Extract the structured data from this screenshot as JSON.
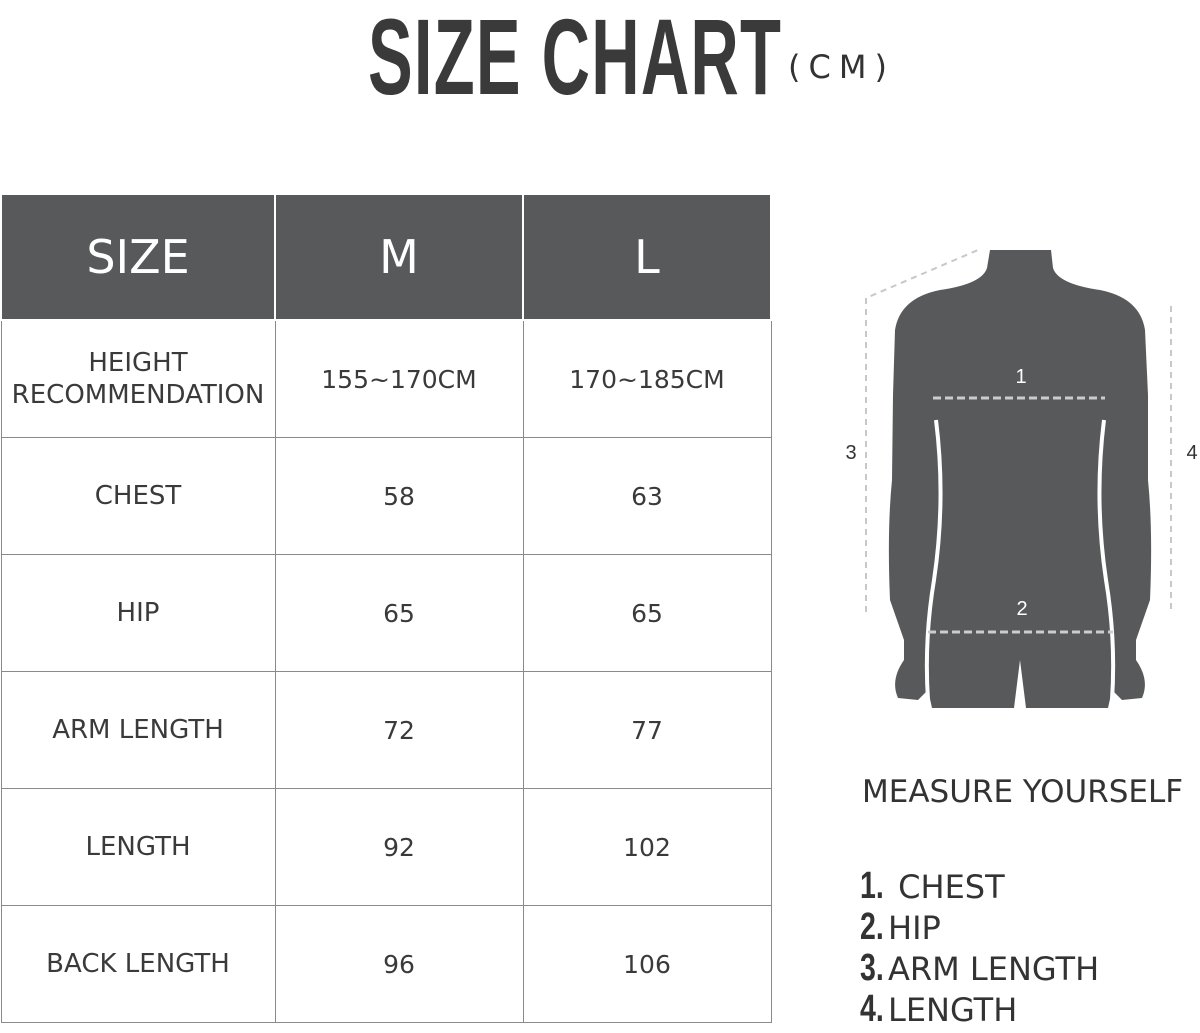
{
  "header": {
    "title": "SIZE CHART",
    "unit": "(CM)"
  },
  "table": {
    "columns": [
      "SIZE",
      "M",
      "L"
    ],
    "rows": [
      {
        "label": "HEIGHT RECOMMENDATION",
        "label_line1": "HEIGHT",
        "label_line2": "RECOMMENDATION",
        "m": "155~170CM",
        "l": "170~185CM"
      },
      {
        "label": "CHEST",
        "m": "58",
        "l": "63"
      },
      {
        "label": "HIP",
        "m": "65",
        "l": "65"
      },
      {
        "label": "ARM LENGTH",
        "m": "72",
        "l": "77"
      },
      {
        "label": "LENGTH",
        "m": "92",
        "l": "102"
      },
      {
        "label": "BACK LENGTH",
        "m": "96",
        "l": "106"
      }
    ]
  },
  "figure": {
    "markers": [
      "1",
      "2",
      "3",
      "4"
    ],
    "body_color": "#58595b",
    "header_color": "#58595b"
  },
  "measure": {
    "title": "MEASURE YOURSELF",
    "items": [
      {
        "num": "1.",
        "label": "CHEST"
      },
      {
        "num": "2.",
        "label": "HIP"
      },
      {
        "num": "3.",
        "label": "ARM LENGTH"
      },
      {
        "num": "4.",
        "label": "LENGTH"
      }
    ]
  }
}
